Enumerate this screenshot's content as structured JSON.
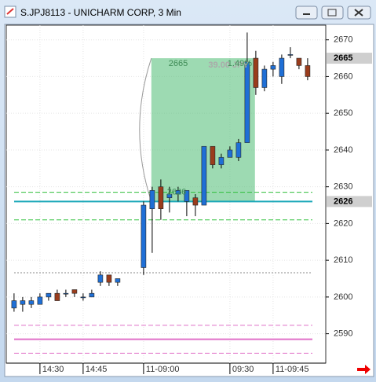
{
  "window": {
    "title": "S.JPJ8113 - UNICHARM CORP, 3 Min"
  },
  "chart_data": {
    "type": "candlestick",
    "open": [
      2597,
      2598,
      2598,
      2598,
      2600,
      2601,
      2601,
      2602,
      2600,
      2600,
      2604,
      2606,
      2604,
      null,
      null,
      2608,
      2624,
      2630,
      2627,
      2628,
      2626,
      2627,
      2625,
      2641,
      2636,
      2638,
      2638,
      2642,
      2665,
      2657,
      2662,
      2660,
      2666,
      2665,
      2663
    ],
    "high": [
      2601,
      2600,
      2600,
      2601,
      2601,
      2602,
      2602,
      2602,
      2601,
      2602,
      2607,
      2606,
      2605,
      null,
      null,
      2626,
      2630,
      2632,
      2630,
      2630,
      2629,
      2628,
      2641,
      2641,
      2639,
      2641,
      2643,
      2672,
      2667,
      2663,
      2664,
      2666,
      2668,
      2665,
      2665
    ],
    "low": [
      2596,
      2596,
      2597,
      2598,
      2599,
      2599,
      2600,
      2600,
      2599,
      2600,
      2603,
      2603,
      2603,
      null,
      null,
      2606,
      2612,
      2621,
      2623,
      2626,
      2622,
      2622,
      2625,
      2635,
      2635,
      2638,
      2637,
      2642,
      2655,
      2656,
      2660,
      2658,
      2665,
      2662,
      2659
    ],
    "close": [
      2599,
      2599,
      2599,
      2600,
      2601,
      2599,
      2601,
      2601,
      2600,
      2601,
      2606,
      2604,
      2605,
      null,
      null,
      2625,
      2629,
      2624,
      2628,
      2629,
      2629,
      2625,
      2641,
      2636,
      2638,
      2640,
      2642,
      2664,
      2657,
      2662,
      2663,
      2665,
      2666,
      2663,
      2660
    ],
    "up_color": "#1f6fd6",
    "down_color": "#9a3c1c",
    "xlim": [
      -0.9,
      36.1
    ],
    "xticks": [
      {
        "value": 3,
        "label": "14:30"
      },
      {
        "value": 8,
        "label": "14:45"
      },
      {
        "value": 15,
        "label": "11-09:00"
      },
      {
        "value": 25,
        "label": "09:30"
      },
      {
        "value": 30,
        "label": "11-09:45"
      }
    ],
    "ylim": [
      2582,
      2674
    ],
    "yticks": [
      2590,
      2600,
      2610,
      2620,
      2630,
      2640,
      2650,
      2660,
      2670
    ],
    "grid": true,
    "price_labels": [
      2665,
      2626
    ],
    "hlines": [
      {
        "value": 2628.5,
        "color": "#2fbf3a",
        "style": "dashed"
      },
      {
        "value": 2621,
        "color": "#2fbf3a",
        "style": "dashed"
      },
      {
        "value": 2626,
        "color": "#1aa7b8",
        "style": "solid"
      },
      {
        "value": 2606.6,
        "color": "#888888",
        "style": "dotted"
      },
      {
        "value": 2592.3,
        "color": "#e070c8",
        "style": "dashed"
      },
      {
        "value": 2588.5,
        "color": "#e070c8",
        "style": "solid"
      },
      {
        "value": 2584.7,
        "color": "#e070c8",
        "style": "dashed"
      }
    ],
    "measure": {
      "x0": 15.9,
      "x1": 27.9,
      "top": 2665,
      "bottom": 2626,
      "color": "#5cc27e",
      "texts": [
        "39.00 JPY",
        "2665",
        "1.49%",
        "2626"
      ]
    }
  }
}
